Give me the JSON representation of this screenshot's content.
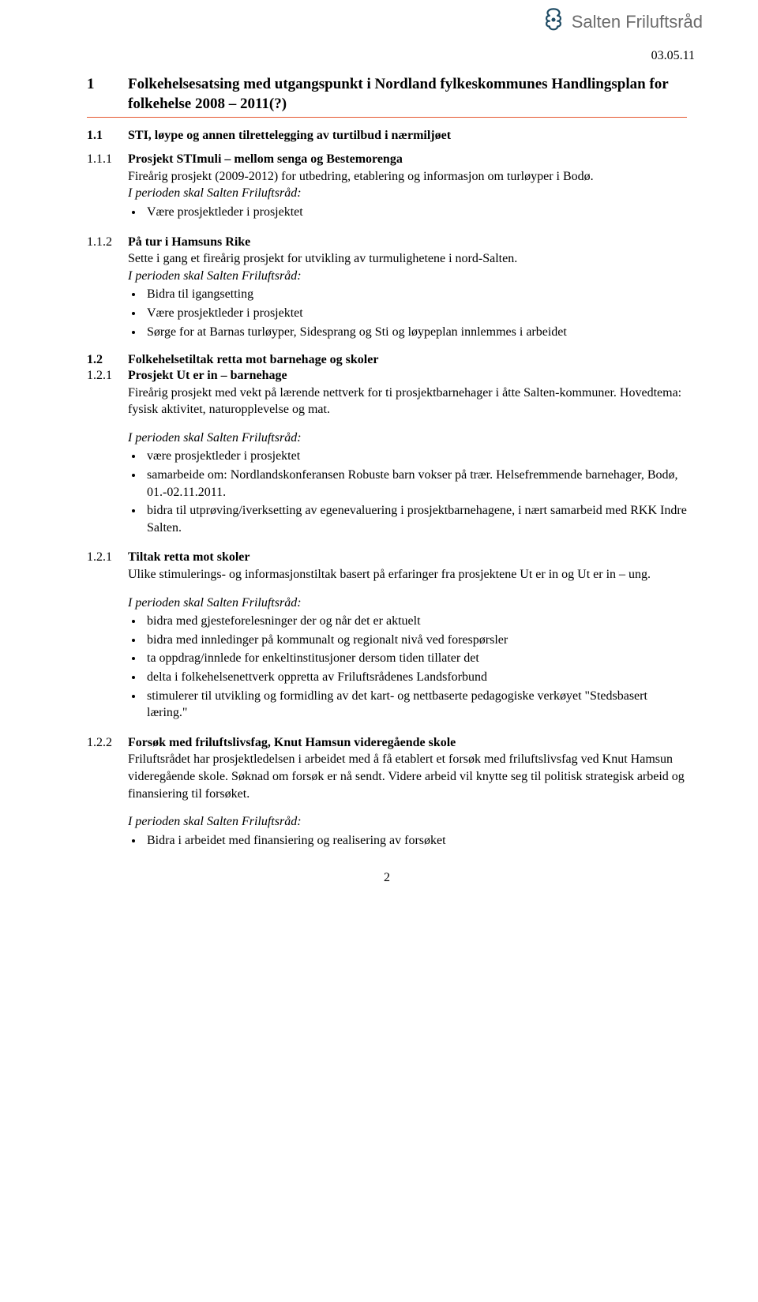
{
  "brand_name": "Salten Friluftsråd",
  "date": "03.05.11",
  "accent_color": "#E5572E",
  "brand_text_color": "#6b6b6b",
  "page_number": "2",
  "h1_num": "1",
  "h1_text": "Folkehelsesatsing med utgangspunkt i Nordland fylkeskommunes Handlingsplan for folkehelse 2008 – 2011(?)",
  "s11_num": "1.1",
  "s11_title": "STI, løype og annen tilrettelegging av turtilbud i nærmiljøet",
  "s111_num": "1.1.1",
  "s111_title": "Prosjekt STImuli – mellom senga og Bestemorenga",
  "s111_body": "Fireårig prosjekt (2009-2012) for utbedring, etablering og informasjon om turløyper i Bodø.",
  "lead_phrase": "I perioden skal Salten Friluftsråd:",
  "s111_bullets": [
    "Være prosjektleder i prosjektet"
  ],
  "s112_num": "1.1.2",
  "s112_title": "På tur i Hamsuns Rike",
  "s112_body": "Sette i gang et fireårig prosjekt for utvikling av turmulighetene i nord-Salten.",
  "s112_bullets": [
    "Bidra til igangsetting",
    "Være prosjektleder i prosjektet",
    "Sørge for at Barnas turløyper, Sidesprang og Sti og løypeplan innlemmes i arbeidet"
  ],
  "s12_num": "1.2",
  "s12_title": "Folkehelsetiltak retta mot barnehage og skoler",
  "s121a_num": "1.2.1",
  "s121a_title": "Prosjekt Ut er in – barnehage",
  "s121a_body": "Fireårig prosjekt med vekt på lærende nettverk for ti prosjektbarnehager i åtte Salten-kommuner. Hovedtema: fysisk aktivitet, naturopplevelse og mat.",
  "s121a_bullets": [
    "være prosjektleder i prosjektet",
    "samarbeide om: Nordlandskonferansen Robuste barn vokser på trær. Helsefremmende barnehager, Bodø, 01.-02.11.2011.",
    "bidra til utprøving/iverksetting av egenevaluering i prosjektbarnehagene, i nært samarbeid med RKK Indre Salten."
  ],
  "s121b_num": "1.2.1",
  "s121b_title": "Tiltak retta mot skoler",
  "s121b_body": "Ulike stimulerings- og informasjonstiltak basert på erfaringer fra prosjektene Ut er in og Ut er in – ung.",
  "s121b_bullets": [
    "bidra med gjesteforelesninger der og når det er aktuelt",
    "bidra med innledinger på kommunalt og regionalt nivå ved forespørsler",
    "ta oppdrag/innlede for enkeltinstitusjoner dersom tiden tillater det",
    "delta i folkehelsenettverk oppretta av Friluftsrådenes Landsforbund",
    "stimulerer til utvikling og formidling av det kart- og nettbaserte pedagogiske verkøyet \"Stedsbasert læring.\""
  ],
  "s122_num": "1.2.2",
  "s122_title": "Forsøk med friluftslivsfag, Knut Hamsun videregående skole",
  "s122_body": "Friluftsrådet har prosjektledelsen i arbeidet med å få etablert et forsøk med friluftslivsfag ved Knut Hamsun videregående skole. Søknad om forsøk er nå sendt. Videre arbeid vil knytte seg til politisk strategisk arbeid og finansiering til forsøket.",
  "s122_bullets": [
    "Bidra i arbeidet med finansiering og realisering av forsøket"
  ]
}
